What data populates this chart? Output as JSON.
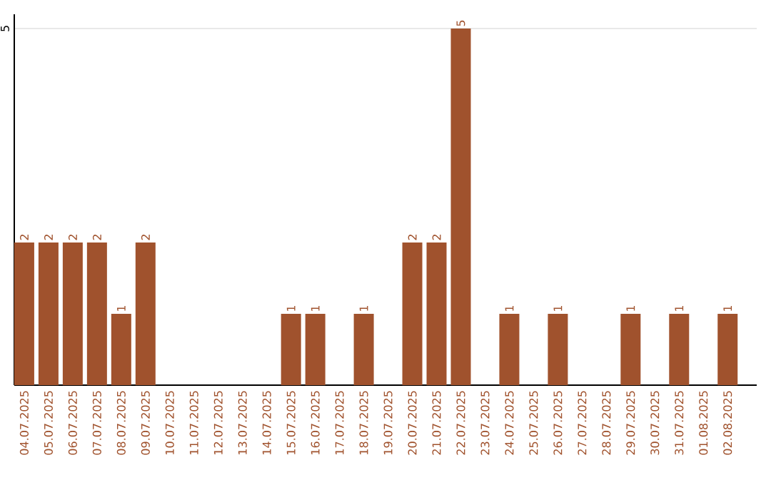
{
  "chart_data": {
    "type": "bar",
    "categories": [
      "04.07.2025",
      "05.07.2025",
      "06.07.2025",
      "07.07.2025",
      "08.07.2025",
      "09.07.2025",
      "10.07.2025",
      "11.07.2025",
      "12.07.2025",
      "13.07.2025",
      "14.07.2025",
      "15.07.2025",
      "16.07.2025",
      "17.07.2025",
      "18.07.2025",
      "19.07.2025",
      "20.07.2025",
      "21.07.2025",
      "22.07.2025",
      "23.07.2025",
      "24.07.2025",
      "25.07.2025",
      "26.07.2025",
      "27.07.2025",
      "28.07.2025",
      "29.07.2025",
      "30.07.2025",
      "31.07.2025",
      "01.08.2025",
      "02.08.2025"
    ],
    "values": [
      2,
      2,
      2,
      2,
      1,
      2,
      0,
      0,
      0,
      0,
      0,
      1,
      1,
      0,
      1,
      0,
      2,
      2,
      5,
      0,
      1,
      0,
      1,
      0,
      0,
      1,
      0,
      1,
      0,
      1
    ],
    "value_labels": [
      "2",
      "2",
      "2",
      "2",
      "1",
      "2",
      null,
      null,
      null,
      null,
      null,
      "1",
      "1",
      null,
      "1",
      null,
      "2",
      "2",
      "5",
      null,
      "1",
      null,
      "1",
      null,
      null,
      "1",
      null,
      "1",
      null,
      "1"
    ],
    "color": "#a0522d",
    "ylim": [
      0,
      5.2
    ],
    "yticks": [
      5
    ],
    "grid": "y"
  }
}
